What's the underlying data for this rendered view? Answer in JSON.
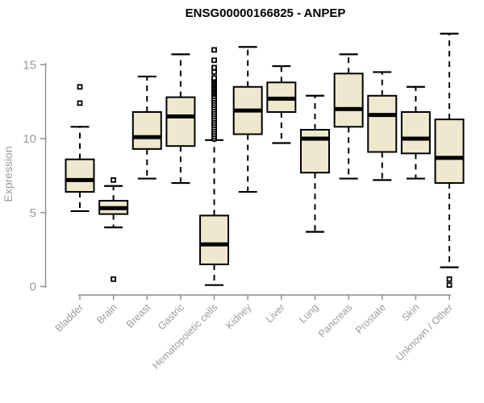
{
  "chart_data": {
    "type": "boxplot",
    "title": "ENSG00000166825 - ANPEP",
    "ylabel": "Expression",
    "xlabel": "",
    "ylim": [
      0,
      17.5
    ],
    "yticks": [
      0,
      5,
      10,
      15
    ],
    "grid": false,
    "legend": "none",
    "categories": [
      "Bladder",
      "Brain",
      "Breast",
      "Gastric",
      "Hematopoietic cells",
      "Kidney",
      "Liver",
      "Lung",
      "Pancreas",
      "Prostate",
      "Skin",
      "Unknown / Other"
    ],
    "series": [
      {
        "category": "Bladder",
        "whisker_low": 5.1,
        "q1": 6.4,
        "median": 7.2,
        "q3": 8.6,
        "whisker_high": 10.8,
        "outliers": [
          12.4,
          13.5
        ]
      },
      {
        "category": "Brain",
        "whisker_low": 4.0,
        "q1": 4.9,
        "median": 5.3,
        "q3": 5.8,
        "whisker_high": 6.8,
        "outliers": [
          0.5,
          7.2
        ]
      },
      {
        "category": "Breast",
        "whisker_low": 7.3,
        "q1": 9.3,
        "median": 10.1,
        "q3": 11.8,
        "whisker_high": 14.2,
        "outliers": []
      },
      {
        "category": "Gastric",
        "whisker_low": 7.0,
        "q1": 9.5,
        "median": 11.5,
        "q3": 12.8,
        "whisker_high": 15.7,
        "outliers": []
      },
      {
        "category": "Hematopoietic cells",
        "whisker_low": 0.1,
        "q1": 1.5,
        "median": 2.85,
        "q3": 4.8,
        "whisker_high": 9.9,
        "outliers": [
          10.0,
          10.15,
          10.3,
          10.45,
          10.6,
          10.75,
          10.9,
          11.05,
          11.2,
          11.35,
          11.5,
          11.65,
          11.8,
          11.95,
          12.1,
          12.25,
          12.4,
          12.55,
          12.7,
          12.85,
          13.0,
          13.1,
          13.2,
          13.3,
          13.4,
          13.5,
          13.6,
          13.7,
          13.8,
          13.9,
          14.0,
          14.1,
          14.5,
          14.8,
          15.3,
          16.0
        ]
      },
      {
        "category": "Kidney",
        "whisker_low": 6.4,
        "q1": 10.3,
        "median": 11.9,
        "q3": 13.5,
        "whisker_high": 16.2,
        "outliers": []
      },
      {
        "category": "Liver",
        "whisker_low": 9.7,
        "q1": 11.8,
        "median": 12.7,
        "q3": 13.8,
        "whisker_high": 14.9,
        "outliers": []
      },
      {
        "category": "Lung",
        "whisker_low": 3.7,
        "q1": 7.7,
        "median": 10.0,
        "q3": 10.6,
        "whisker_high": 12.9,
        "outliers": []
      },
      {
        "category": "Pancreas",
        "whisker_low": 7.3,
        "q1": 10.8,
        "median": 12.0,
        "q3": 14.4,
        "whisker_high": 15.7,
        "outliers": []
      },
      {
        "category": "Prostate",
        "whisker_low": 7.2,
        "q1": 9.1,
        "median": 11.6,
        "q3": 12.9,
        "whisker_high": 14.5,
        "outliers": []
      },
      {
        "category": "Skin",
        "whisker_low": 7.3,
        "q1": 9.0,
        "median": 10.0,
        "q3": 11.8,
        "whisker_high": 13.5,
        "outliers": []
      },
      {
        "category": "Unknown / Other",
        "whisker_low": 1.3,
        "q1": 7.0,
        "median": 8.7,
        "q3": 11.3,
        "whisker_high": 17.1,
        "outliers": [
          0.1,
          0.5
        ]
      }
    ],
    "colors": {
      "box_fill": "#EDE8CE",
      "box_stroke": "#000000",
      "median": "#000000",
      "whisker": "#000000",
      "outlier_fill": "#FFFFFF",
      "axis": "#8A8A8A",
      "tick_label": "#9B9B9B",
      "title": "#000000",
      "background": "#FFFFFF"
    }
  }
}
